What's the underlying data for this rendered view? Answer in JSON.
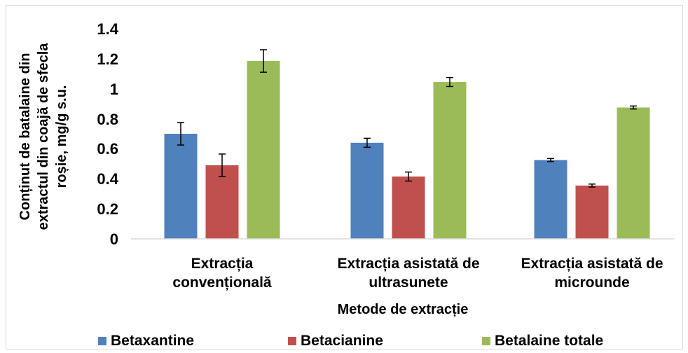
{
  "chart_data": {
    "type": "bar",
    "xlabel": "Metode de extracție",
    "ylabel": [
      "Conținut de batalaine din",
      "extractul din coajă de sfecla",
      "roșie, mg/g s.u."
    ],
    "ylim": [
      0,
      1.4
    ],
    "yticks": [
      "0",
      "0.2",
      "0.4",
      "0.6",
      "0.8",
      "1",
      "1.2",
      "1.4"
    ],
    "grid": false,
    "legend_position": "bottom",
    "categories": [
      [
        "Extracția",
        "convențională"
      ],
      [
        "Extracția asistată de",
        "ultrasunete"
      ],
      [
        "Extracția asistată de",
        "microunde"
      ]
    ],
    "series": [
      {
        "name": "Betaxantine",
        "color": "#4f81bd",
        "values": [
          0.7,
          0.64,
          0.525
        ],
        "errors": [
          0.075,
          0.03,
          0.01
        ]
      },
      {
        "name": "Betacianine",
        "color": "#c0504d",
        "values": [
          0.49,
          0.415,
          0.355
        ],
        "errors": [
          0.075,
          0.03,
          0.01
        ]
      },
      {
        "name": "Betalaine totale",
        "color": "#9bbb59",
        "values": [
          1.185,
          1.045,
          0.875
        ],
        "errors": [
          0.075,
          0.03,
          0.01
        ]
      }
    ]
  }
}
